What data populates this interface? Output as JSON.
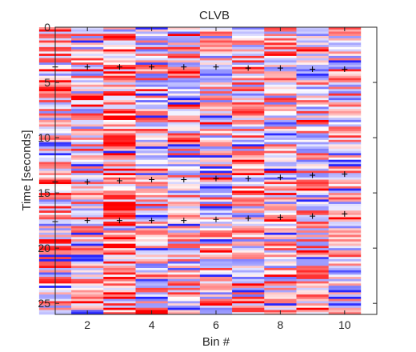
{
  "chart_data": {
    "type": "heatmap",
    "title": "CLVB",
    "xlabel": "Bin #",
    "ylabel": "Time [seconds]",
    "xlim": [
      1,
      11
    ],
    "ylim": [
      0,
      26
    ],
    "y_reversed": true,
    "x_ticks": [
      2,
      4,
      6,
      8,
      10
    ],
    "y_ticks": [
      0,
      5,
      10,
      15,
      20,
      25
    ],
    "bins": [
      1,
      2,
      3,
      4,
      5,
      6,
      7,
      8,
      9,
      10
    ],
    "colormap": "blue-white-red",
    "colors": {
      "negative": "#2a2aff",
      "neutral": "#ffffff",
      "positive": "#ff0000"
    },
    "row_step_seconds": 0.2,
    "value_range": [
      -1,
      1
    ],
    "markers": [
      {
        "bin": 1,
        "time": 3.6
      },
      {
        "bin": 2,
        "time": 3.6
      },
      {
        "bin": 3,
        "time": 3.6
      },
      {
        "bin": 4,
        "time": 3.6
      },
      {
        "bin": 5,
        "time": 3.6
      },
      {
        "bin": 6,
        "time": 3.6
      },
      {
        "bin": 7,
        "time": 3.7
      },
      {
        "bin": 8,
        "time": 3.7
      },
      {
        "bin": 9,
        "time": 3.8
      },
      {
        "bin": 10,
        "time": 3.8
      },
      {
        "bin": 1,
        "time": 14.0
      },
      {
        "bin": 2,
        "time": 14.0
      },
      {
        "bin": 3,
        "time": 13.9
      },
      {
        "bin": 4,
        "time": 13.8
      },
      {
        "bin": 5,
        "time": 13.8
      },
      {
        "bin": 6,
        "time": 13.7
      },
      {
        "bin": 7,
        "time": 13.7
      },
      {
        "bin": 8,
        "time": 13.6
      },
      {
        "bin": 9,
        "time": 13.4
      },
      {
        "bin": 10,
        "time": 13.3
      },
      {
        "bin": 1,
        "time": 17.6
      },
      {
        "bin": 2,
        "time": 17.5
      },
      {
        "bin": 3,
        "time": 17.5
      },
      {
        "bin": 4,
        "time": 17.5
      },
      {
        "bin": 5,
        "time": 17.5
      },
      {
        "bin": 6,
        "time": 17.4
      },
      {
        "bin": 7,
        "time": 17.3
      },
      {
        "bin": 8,
        "time": 17.2
      },
      {
        "bin": 9,
        "time": 17.1
      },
      {
        "bin": 10,
        "time": 16.9
      }
    ]
  }
}
